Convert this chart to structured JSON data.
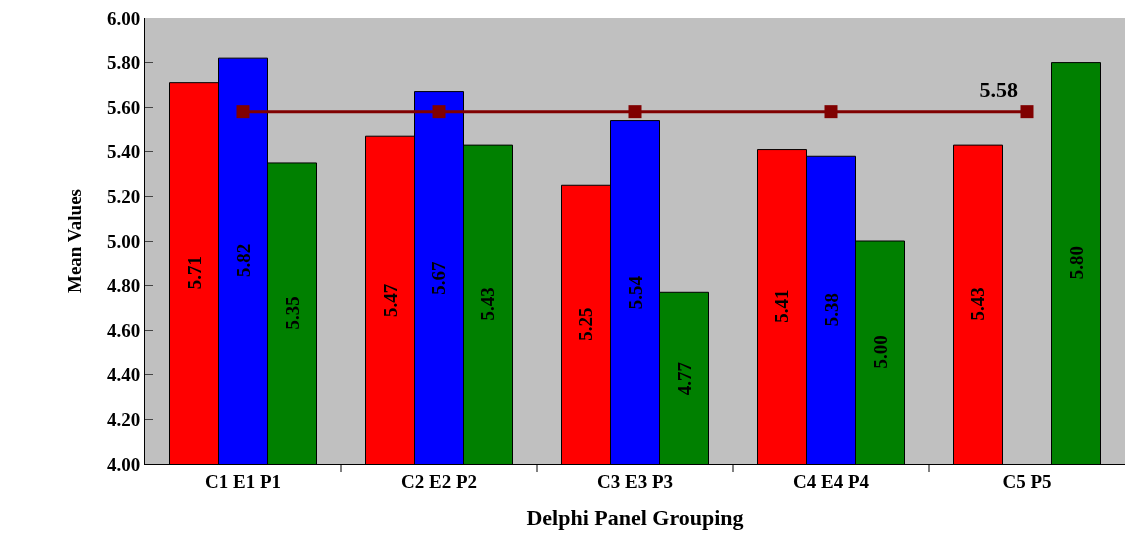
{
  "chart_data": {
    "type": "bar",
    "xlabel": "Delphi Panel Grouping",
    "ylabel": "Mean Values",
    "categories": [
      "C1 E1 P1",
      "C2 E2 P2",
      "C3 E3 P3",
      "C4 E4 P4",
      "C5 P5"
    ],
    "series": [
      {
        "color": "#ff0000",
        "values": [
          5.71,
          5.47,
          5.25,
          5.41,
          5.43
        ],
        "value_labels": [
          "5.71",
          "5.47",
          "5.25",
          "5.41",
          "5.43"
        ]
      },
      {
        "color": "#0000ff",
        "values": [
          5.82,
          5.67,
          5.54,
          5.38,
          null
        ],
        "value_labels": [
          "5.82",
          "5.67",
          "5.54",
          "5.38",
          null
        ]
      },
      {
        "color": "#008000",
        "values": [
          5.35,
          5.43,
          4.77,
          5.0,
          5.8
        ],
        "value_labels": [
          "5.35",
          "5.43",
          "4.77",
          "5.00",
          "5.80"
        ]
      },
      {
        "type": "line",
        "color": "#800000",
        "marker": "square",
        "line_style": "solid",
        "values": [
          5.58,
          5.58,
          5.58,
          5.58,
          5.58
        ],
        "value_labels": [
          null,
          null,
          null,
          null,
          "5.58"
        ]
      }
    ],
    "ylim": [
      4,
      6
    ],
    "yticks": [
      {
        "value": 4,
        "label": "4.00"
      },
      {
        "value": 4.2,
        "label": "4.20"
      },
      {
        "value": 4.4,
        "label": "4.40"
      },
      {
        "value": 4.6,
        "label": "4.60"
      },
      {
        "value": 4.8,
        "label": "4.80"
      },
      {
        "value": 5,
        "label": "5.00"
      },
      {
        "value": 5.2,
        "label": "5.20"
      },
      {
        "value": 5.4,
        "label": "5.40"
      },
      {
        "value": 5.6,
        "label": "5.60"
      },
      {
        "value": 5.8,
        "label": "5.80"
      },
      {
        "value": 6,
        "label": "6.00"
      }
    ],
    "grid": false
  }
}
